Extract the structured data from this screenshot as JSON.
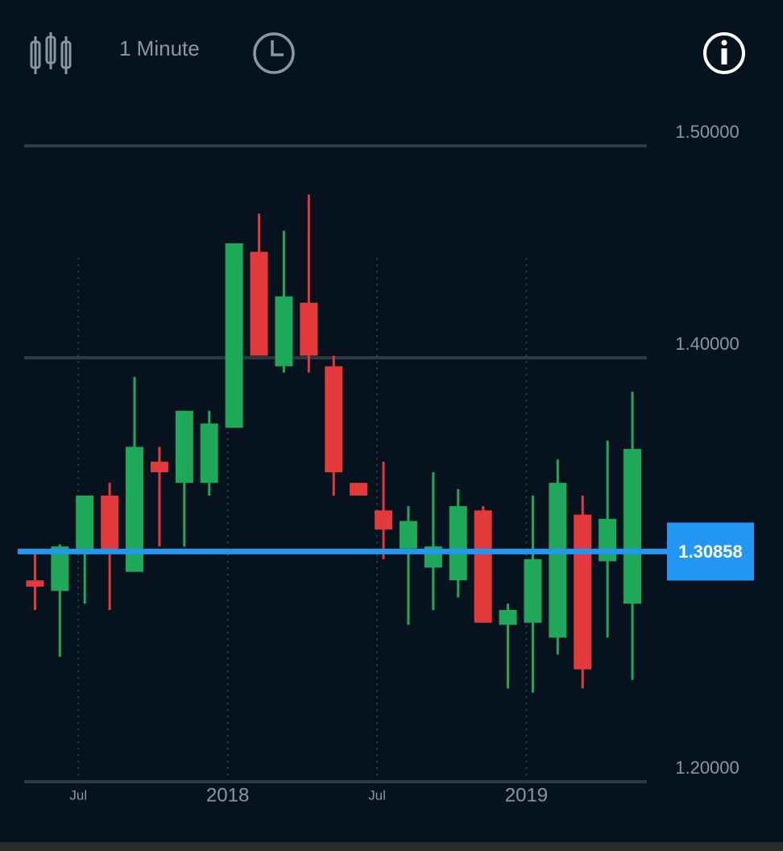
{
  "toolbar": {
    "interval": "1 Minute"
  },
  "chart_data": {
    "type": "candlestick",
    "categories": [
      null,
      null,
      "Jul",
      null,
      null,
      null,
      null,
      null,
      "2018",
      null,
      null,
      null,
      null,
      null,
      "Jul",
      null,
      null,
      null,
      null,
      null,
      "2019",
      null,
      null,
      null,
      null
    ],
    "open": [
      1.295,
      1.29,
      1.308,
      1.335,
      1.299,
      1.351,
      1.341,
      1.341,
      1.367,
      1.45,
      1.396,
      1.426,
      1.396,
      1.341,
      1.328,
      1.31,
      1.301,
      1.295,
      1.328,
      1.274,
      1.275,
      1.268,
      1.326,
      1.304,
      1.284
    ],
    "high": [
      1.308,
      1.312,
      1.335,
      1.341,
      1.391,
      1.358,
      1.375,
      1.375,
      1.454,
      1.468,
      1.46,
      1.477,
      1.401,
      1.341,
      1.351,
      1.33,
      1.346,
      1.338,
      1.33,
      1.284,
      1.335,
      1.352,
      1.335,
      1.361,
      1.384
    ],
    "low": [
      1.281,
      1.259,
      1.284,
      1.281,
      1.299,
      1.311,
      1.311,
      1.335,
      1.367,
      1.401,
      1.393,
      1.393,
      1.335,
      1.335,
      1.305,
      1.274,
      1.281,
      1.287,
      1.275,
      1.244,
      1.242,
      1.26,
      1.244,
      1.268,
      1.248
    ],
    "close": [
      1.292,
      1.311,
      1.335,
      1.308,
      1.358,
      1.346,
      1.375,
      1.369,
      1.454,
      1.401,
      1.429,
      1.401,
      1.346,
      1.335,
      1.319,
      1.323,
      1.311,
      1.33,
      1.275,
      1.281,
      1.305,
      1.341,
      1.253,
      1.324,
      1.357
    ],
    "up_color": "#20a85a",
    "down_color": "#e2393b",
    "ylim": [
      1.2,
      1.5
    ],
    "yticks": [
      {
        "value": 1.2,
        "label": "1.20000"
      },
      {
        "value": 1.4,
        "label": "1.40000"
      },
      {
        "value": 1.5,
        "label": "1.50000"
      }
    ],
    "grid": true,
    "current_price": {
      "value": 1.30858,
      "label": "1.30858",
      "color": "#2196f3"
    }
  }
}
